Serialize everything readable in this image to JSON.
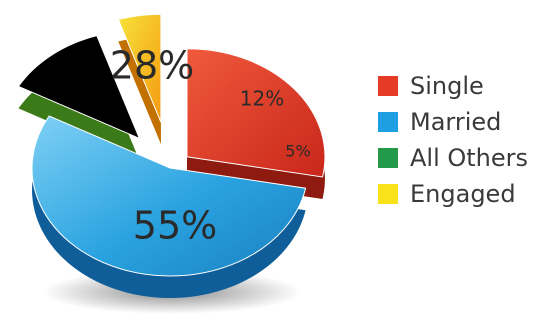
{
  "chart_data": {
    "type": "pie",
    "style": "3d-exploded",
    "legend_position": "right",
    "slices": [
      {
        "name": "Single",
        "value": 28,
        "label": "28%",
        "color": "#e8402a"
      },
      {
        "name": "Married",
        "value": 55,
        "label": "55%",
        "color": "#2aa3e0"
      },
      {
        "name": "All Others",
        "value": 12,
        "label": "12%",
        "color": "#6fbf2a"
      },
      {
        "name": "Engaged",
        "value": 5,
        "label": "5%",
        "color": "#f5c400"
      }
    ]
  },
  "legend": {
    "items": [
      {
        "name": "Single",
        "color": "#e53a25"
      },
      {
        "name": "Married",
        "color": "#1f9fe3"
      },
      {
        "name": "All Others",
        "color": "#239a4a"
      },
      {
        "name": "Engaged",
        "color": "#f9e21a"
      }
    ]
  }
}
